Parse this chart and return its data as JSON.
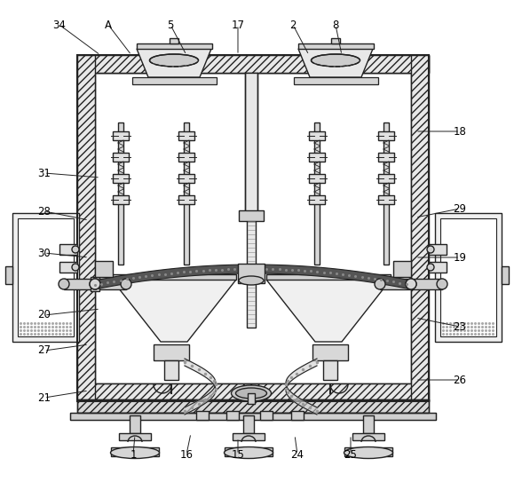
{
  "bg_color": "#ffffff",
  "line_color": "#222222",
  "figsize": [
    5.79,
    5.43
  ],
  "dpi": 100,
  "labels": [
    [
      "34",
      67,
      28,
      113,
      62,
      -1
    ],
    [
      "A",
      122,
      28,
      148,
      62,
      -1
    ],
    [
      "5",
      192,
      28,
      210,
      62,
      -1
    ],
    [
      "17",
      268,
      28,
      268,
      62,
      -1
    ],
    [
      "2",
      330,
      28,
      348,
      62,
      -1
    ],
    [
      "8",
      378,
      28,
      385,
      62,
      -1
    ],
    [
      "18",
      518,
      148,
      468,
      148,
      1
    ],
    [
      "31",
      50,
      195,
      113,
      200,
      1
    ],
    [
      "28",
      50,
      238,
      100,
      248,
      1
    ],
    [
      "29",
      518,
      235,
      468,
      245,
      -1
    ],
    [
      "30",
      50,
      285,
      100,
      290,
      1
    ],
    [
      "19",
      518,
      290,
      468,
      290,
      -1
    ],
    [
      "20",
      50,
      355,
      113,
      348,
      1
    ],
    [
      "23",
      518,
      368,
      468,
      358,
      -1
    ],
    [
      "27",
      50,
      395,
      100,
      388,
      1
    ],
    [
      "21",
      50,
      448,
      100,
      440,
      1
    ],
    [
      "26",
      518,
      428,
      468,
      428,
      -1
    ],
    [
      "1",
      150,
      512,
      152,
      490,
      0
    ],
    [
      "16",
      210,
      512,
      215,
      488,
      0
    ],
    [
      "15",
      268,
      512,
      268,
      493,
      0
    ],
    [
      "24",
      335,
      512,
      332,
      490,
      0
    ],
    [
      "25",
      395,
      512,
      395,
      490,
      0
    ]
  ]
}
